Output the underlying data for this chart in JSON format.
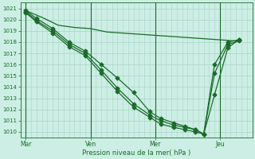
{
  "bg_color": "#cceee4",
  "grid_color": "#aad4c8",
  "line_color": "#1a6b2a",
  "marker_color": "#1a6b2a",
  "xlabel": "Pression niveau de la mer( hPa )",
  "xlabel_color": "#1a6b2a",
  "tick_color": "#1a6b2a",
  "ylim": [
    1009.5,
    1021.5
  ],
  "yticks": [
    1010,
    1011,
    1012,
    1013,
    1014,
    1015,
    1016,
    1017,
    1018,
    1019,
    1020,
    1021
  ],
  "xtick_labels": [
    "Mar",
    "Ven",
    "Mer",
    "Jeu"
  ],
  "xtick_positions": [
    0,
    24,
    48,
    72
  ],
  "xlim": [
    -2,
    84
  ],
  "vlines": [
    0,
    24,
    48,
    72
  ],
  "series": [
    {
      "x": [
        0,
        6,
        12,
        18,
        24,
        30,
        36,
        42,
        48,
        54,
        60,
        66,
        72,
        78
      ],
      "y": [
        1020.8,
        1020.2,
        1019.5,
        1019.3,
        1019.2,
        1018.9,
        1018.8,
        1018.7,
        1018.6,
        1018.5,
        1018.4,
        1018.3,
        1018.2,
        1018.1
      ],
      "marker": null,
      "ms": 0,
      "lw": 0.9
    },
    {
      "x": [
        0,
        4,
        10,
        16,
        22,
        28,
        34,
        40,
        46,
        50,
        55,
        59,
        63,
        66,
        70,
        75,
        79
      ],
      "y": [
        1020.8,
        1020.1,
        1019.2,
        1018.0,
        1017.2,
        1016.0,
        1014.8,
        1013.5,
        1011.8,
        1011.2,
        1010.8,
        1010.5,
        1010.2,
        1009.8,
        1013.3,
        1017.5,
        1018.2
      ],
      "marker": "D",
      "ms": 2.5,
      "lw": 0.9
    },
    {
      "x": [
        0,
        4,
        10,
        16,
        22,
        28,
        34,
        40,
        46,
        50,
        55,
        59,
        63,
        66,
        70,
        75,
        79
      ],
      "y": [
        1020.7,
        1019.9,
        1019.0,
        1017.8,
        1017.0,
        1015.5,
        1013.9,
        1012.5,
        1011.5,
        1011.0,
        1010.6,
        1010.4,
        1010.2,
        1009.8,
        1015.2,
        1017.8,
        1018.1
      ],
      "marker": "D",
      "ms": 2.5,
      "lw": 0.9
    },
    {
      "x": [
        0,
        4,
        10,
        16,
        22,
        28,
        34,
        40,
        46,
        50,
        55,
        59,
        63,
        66,
        70,
        75,
        79
      ],
      "y": [
        1020.6,
        1019.8,
        1018.8,
        1017.6,
        1016.8,
        1015.2,
        1013.6,
        1012.2,
        1011.3,
        1010.7,
        1010.4,
        1010.2,
        1010.0,
        1009.8,
        1016.0,
        1018.0,
        1018.2
      ],
      "marker": "D",
      "ms": 2.5,
      "lw": 0.9
    }
  ]
}
